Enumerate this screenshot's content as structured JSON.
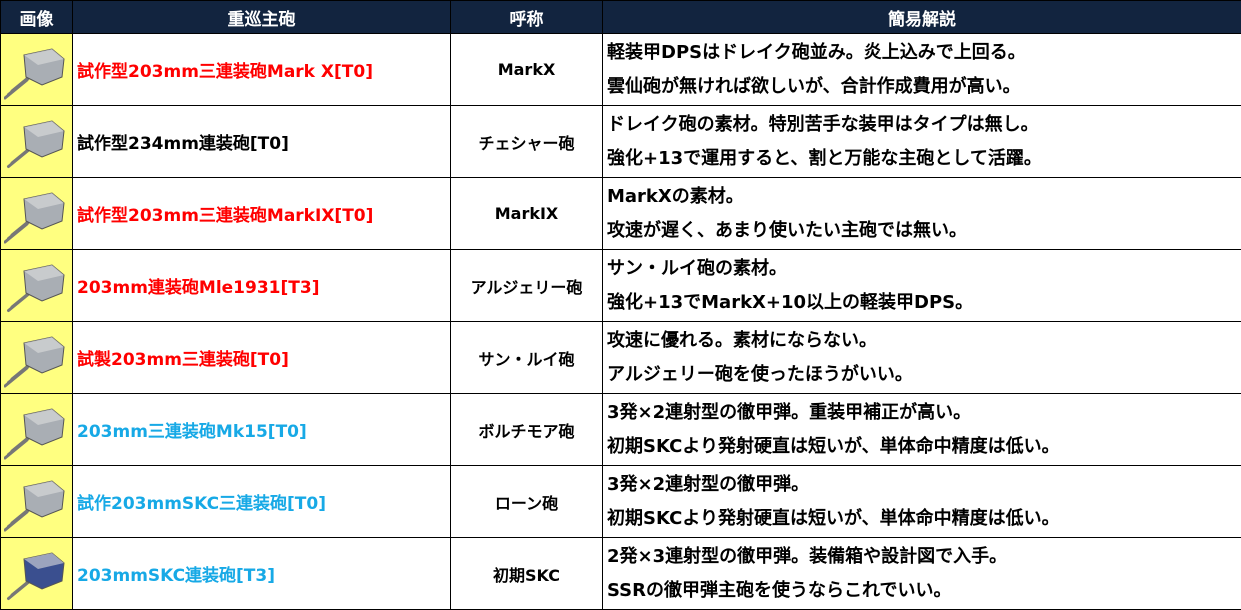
{
  "header": {
    "image": "画像",
    "name": "重巡主砲",
    "alias": "呼称",
    "desc": "簡易解説"
  },
  "colors": {
    "header_bg": "#12243f",
    "image_bg": "#ffff80",
    "red": "#ff0000",
    "blue": "#17a9e6"
  },
  "rows": [
    {
      "name": "試作型203mm三連装砲Mark X[T0]",
      "color": "red",
      "alias": "MarkX",
      "desc1": "軽装甲DPSはドレイク砲並み。炎上込みで上回る。",
      "desc2": "雲仙砲が無ければ欲しいが、合計作成費用が高い。",
      "icon": "triple-turret-icon"
    },
    {
      "name": "試作型234mm連装砲[T0]",
      "color": "black",
      "alias": "チェシャー砲",
      "desc1": "ドレイク砲の素材。特別苦手な装甲はタイプは無し。",
      "desc2": "強化+13で運用すると、割と万能な主砲として活躍。",
      "icon": "twin-turret-icon"
    },
    {
      "name": "試作型203mm三連装砲MarkIX[T0]",
      "color": "red",
      "alias": "MarkIX",
      "desc1": "MarkXの素材。",
      "desc2": "攻速が遅く、あまり使いたい主砲では無い。",
      "icon": "triple-turret-icon"
    },
    {
      "name": "203mm連装砲Mle1931[T3]",
      "color": "red",
      "alias": "アルジェリー砲",
      "desc1": "サン・ルイ砲の素材。",
      "desc2": "強化+13でMarkX+10以上の軽装甲DPS。",
      "icon": "twin-turret-icon"
    },
    {
      "name": "試製203mm三連装砲[T0]",
      "color": "red",
      "alias": "サン・ルイ砲",
      "desc1": "攻速に優れる。素材にならない。",
      "desc2": "アルジェリー砲を使ったほうがいい。",
      "icon": "triple-turret-icon"
    },
    {
      "name": "203mm三連装砲Mk15[T0]",
      "color": "blue",
      "alias": "ボルチモア砲",
      "desc1": "3発×2連射型の徹甲弾。重装甲補正が高い。",
      "desc2": "初期SKCより発射硬直は短いが、単体命中精度は低い。",
      "icon": "triple-turret-icon"
    },
    {
      "name": "試作203mmSKC三連装砲[T0]",
      "color": "blue",
      "alias": "ローン砲",
      "desc1": "3発×2連射型の徹甲弾。",
      "desc2": "初期SKCより発射硬直は短いが、単体命中精度は低い。",
      "icon": "triple-turret-icon"
    },
    {
      "name": "203mmSKC連装砲[T3]",
      "color": "blue",
      "alias": "初期SKC",
      "desc1": "2発×3連射型の徹甲弾。装備箱や設計図で入手。",
      "desc2": "SSRの徹甲弾主砲を使うならこれでいい。",
      "icon": "twin-turret-icon"
    }
  ]
}
